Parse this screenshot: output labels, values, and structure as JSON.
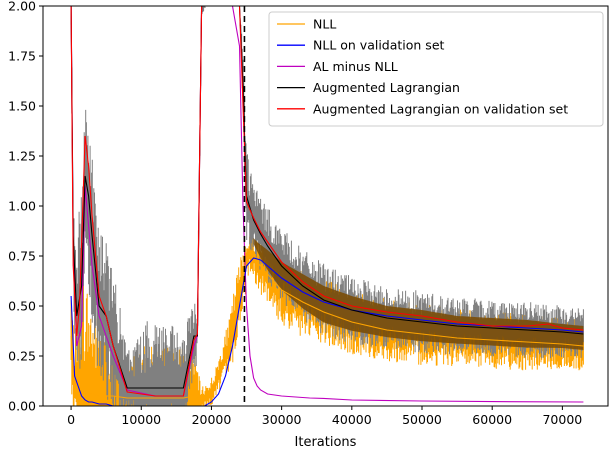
{
  "chart_data": {
    "type": "line",
    "title": "",
    "xlabel": "Iterations",
    "ylabel": "",
    "xlim": [
      -4000,
      76500
    ],
    "ylim": [
      0,
      2.0
    ],
    "xticks": [
      0,
      10000,
      20000,
      30000,
      40000,
      50000,
      60000,
      70000
    ],
    "xtick_labels": [
      "0",
      "10000",
      "20000",
      "30000",
      "40000",
      "50000",
      "60000",
      "70000"
    ],
    "yticks": [
      0.0,
      0.25,
      0.5,
      0.75,
      1.0,
      1.25,
      1.5,
      1.75,
      2.0
    ],
    "ytick_labels": [
      "0.00",
      "0.25",
      "0.50",
      "0.75",
      "1.00",
      "1.25",
      "1.50",
      "1.75",
      "2.00"
    ],
    "grid": false,
    "legend_position": "top-right",
    "vertical_line": {
      "x": 24700,
      "style": "dashed",
      "color": "#000000"
    },
    "series": [
      {
        "name": "NLL",
        "color": "#ffa500",
        "band": true,
        "x": [
          0,
          500,
          1200,
          2000,
          3000,
          4000,
          5000,
          6000,
          8000,
          10000,
          12000,
          14000,
          16000,
          17500,
          18500,
          19500,
          20500,
          21500,
          22500,
          23500,
          24500,
          25500,
          26500,
          28000,
          30000,
          33000,
          36000,
          40000,
          45000,
          50000,
          55000,
          60000,
          65000,
          70000,
          73000
        ],
        "values": [
          0.35,
          0.12,
          0.08,
          0.07,
          0.06,
          0.05,
          0.05,
          0.05,
          0.04,
          0.04,
          0.04,
          0.04,
          0.04,
          0.05,
          0.03,
          0.05,
          0.1,
          0.2,
          0.3,
          0.45,
          0.65,
          0.78,
          0.72,
          0.66,
          0.58,
          0.52,
          0.47,
          0.42,
          0.38,
          0.36,
          0.34,
          0.33,
          0.32,
          0.31,
          0.3
        ],
        "spread": [
          0.2,
          0.15,
          0.5,
          0.45,
          0.35,
          0.3,
          0.3,
          0.25,
          0.15,
          0.2,
          0.2,
          0.2,
          0.2,
          0.2,
          0.05,
          0.05,
          0.06,
          0.08,
          0.1,
          0.15,
          0.12,
          0.08,
          0.1,
          0.12,
          0.14,
          0.14,
          0.13,
          0.13,
          0.12,
          0.12,
          0.11,
          0.11,
          0.11,
          0.1,
          0.1
        ]
      },
      {
        "name": "NLL on validation set",
        "color": "#0000ff",
        "x": [
          0,
          500,
          1000,
          1500,
          2000,
          2500,
          3000,
          4000,
          5000,
          6000,
          18000,
          19000,
          20000,
          21000,
          22000,
          23000,
          24000,
          25000,
          26000,
          27000,
          28000,
          30000,
          33000,
          36000,
          40000,
          45000,
          50000,
          55000,
          60000,
          65000,
          70000,
          73000
        ],
        "values": [
          0.55,
          0.15,
          0.1,
          0.05,
          0.03,
          0.02,
          0.02,
          0.01,
          0.01,
          0.0,
          0.0,
          0.0,
          0.02,
          0.06,
          0.15,
          0.3,
          0.5,
          0.7,
          0.74,
          0.73,
          0.7,
          0.64,
          0.57,
          0.52,
          0.48,
          0.45,
          0.43,
          0.41,
          0.4,
          0.39,
          0.38,
          0.37
        ]
      },
      {
        "name": "AL minus NLL",
        "color": "#bf00bf",
        "x": [
          0,
          300,
          800,
          1500,
          2000,
          2500,
          3000,
          4000,
          5000,
          6000,
          8000,
          12000,
          16000,
          17500,
          18000,
          18300,
          18600,
          19200,
          20000,
          21000,
          22000,
          23000,
          24000,
          24500,
          25000,
          25500,
          26000,
          26500,
          27000,
          28000,
          30000,
          32000,
          34000,
          36000,
          40000,
          50000,
          60000,
          73000
        ],
        "values": [
          2.0,
          0.8,
          0.3,
          0.4,
          1.1,
          0.9,
          0.7,
          0.45,
          0.35,
          0.25,
          0.08,
          0.05,
          0.05,
          0.3,
          0.35,
          1.2,
          2.0,
          2.0,
          2.0,
          2.0,
          2.0,
          2.0,
          1.8,
          1.0,
          0.5,
          0.25,
          0.14,
          0.1,
          0.08,
          0.06,
          0.05,
          0.045,
          0.04,
          0.038,
          0.03,
          0.025,
          0.022,
          0.02
        ]
      },
      {
        "name": "Augmented Lagrangian",
        "color": "#000000",
        "band": true,
        "x": [
          0,
          300,
          800,
          1500,
          2000,
          2500,
          3000,
          4000,
          5000,
          6000,
          8000,
          12000,
          16000,
          17500,
          18000,
          18300,
          18600,
          19200,
          20000,
          21000,
          22000,
          23000,
          24000,
          24500,
          25000,
          26000,
          27000,
          28000,
          30000,
          33000,
          36000,
          40000,
          45000,
          50000,
          55000,
          60000,
          65000,
          70000,
          73000
        ],
        "values": [
          2.0,
          0.85,
          0.45,
          0.6,
          1.15,
          1.05,
          0.85,
          0.5,
          0.45,
          0.3,
          0.09,
          0.09,
          0.09,
          0.35,
          0.35,
          1.2,
          2.0,
          2.0,
          2.0,
          2.0,
          2.0,
          2.0,
          2.0,
          1.6,
          1.05,
          0.93,
          0.86,
          0.8,
          0.7,
          0.6,
          0.53,
          0.48,
          0.44,
          0.42,
          0.4,
          0.39,
          0.38,
          0.37,
          0.36
        ],
        "spread": [
          0.1,
          0.2,
          0.3,
          0.4,
          0.35,
          0.35,
          0.35,
          0.3,
          0.3,
          0.3,
          0.15,
          0.3,
          0.2,
          0.15,
          0.1,
          0.1,
          0.05,
          0.0,
          0.0,
          0.0,
          0.0,
          0.0,
          0.0,
          0.15,
          0.2,
          0.15,
          0.15,
          0.15,
          0.15,
          0.14,
          0.14,
          0.13,
          0.12,
          0.12,
          0.11,
          0.11,
          0.11,
          0.1,
          0.1
        ]
      },
      {
        "name": "Augmented Lagrangian on validation set",
        "color": "#ff0000",
        "x": [
          0,
          300,
          800,
          1200,
          2000,
          2500,
          3000,
          4000,
          5000,
          6000,
          8000,
          12000,
          16000,
          17500,
          18000,
          18300,
          18600,
          19200,
          20000,
          21000,
          22000,
          23000,
          24000,
          24500,
          25000,
          26000,
          27000,
          28000,
          30000,
          33000,
          36000,
          40000,
          45000,
          50000,
          55000,
          60000,
          65000,
          68000,
          70000,
          73000
        ],
        "values": [
          2.0,
          0.7,
          0.35,
          0.5,
          1.35,
          1.2,
          0.95,
          0.55,
          0.45,
          0.3,
          0.07,
          0.05,
          0.05,
          0.33,
          0.36,
          1.2,
          2.0,
          2.0,
          2.0,
          2.0,
          2.0,
          2.0,
          2.0,
          1.5,
          1.02,
          0.94,
          0.87,
          0.82,
          0.72,
          0.62,
          0.55,
          0.5,
          0.47,
          0.45,
          0.42,
          0.4,
          0.4,
          0.41,
          0.39,
          0.38
        ]
      }
    ]
  }
}
